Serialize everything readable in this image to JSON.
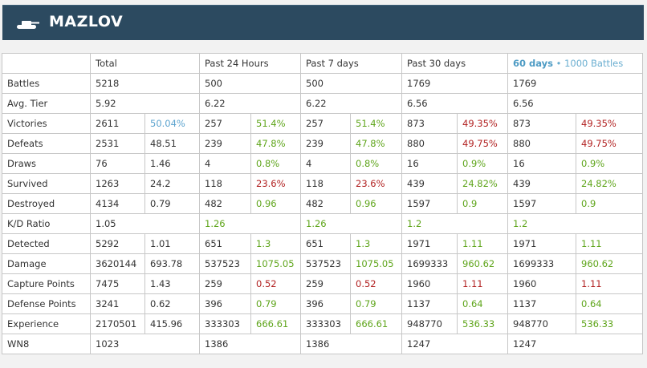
{
  "player": {
    "name": "MAZLOV",
    "icon": "tank-icon"
  },
  "columns": {
    "total": "Total",
    "past24": "Past 24 Hours",
    "past7": "Past 7 days",
    "past30": "Past 30 days",
    "last_highlight": "60 days",
    "last_separator": "•",
    "last_suffix": "1000 Battles"
  },
  "colors": {
    "header_bg": "#2c4a60",
    "good": "#5fa51b",
    "bad": "#b22222",
    "neutral_highlight": "#5da4cf"
  },
  "rows": {
    "battles": {
      "label": "Battles",
      "total": "5218",
      "d24": "500",
      "d7": "500",
      "d30": "1769",
      "d60": "1769"
    },
    "avg_tier": {
      "label": "Avg. Tier",
      "total": "5.92",
      "d24": "6.22",
      "d7": "6.22",
      "d30": "6.56",
      "d60": "6.56"
    },
    "victories": {
      "label": "Victories",
      "total": "2611",
      "total_r": "50.04%",
      "d24": "257",
      "d24_r": "51.4%",
      "d7": "257",
      "d7_r": "51.4%",
      "d30": "873",
      "d30_r": "49.35%",
      "d60": "873",
      "d60_r": "49.35%"
    },
    "defeats": {
      "label": "Defeats",
      "total": "2531",
      "total_r": "48.51",
      "d24": "239",
      "d24_r": "47.8%",
      "d7": "239",
      "d7_r": "47.8%",
      "d30": "880",
      "d30_r": "49.75%",
      "d60": "880",
      "d60_r": "49.75%"
    },
    "draws": {
      "label": "Draws",
      "total": "76",
      "total_r": "1.46",
      "d24": "4",
      "d24_r": "0.8%",
      "d7": "4",
      "d7_r": "0.8%",
      "d30": "16",
      "d30_r": "0.9%",
      "d60": "16",
      "d60_r": "0.9%"
    },
    "survived": {
      "label": "Survived",
      "total": "1263",
      "total_r": "24.2",
      "d24": "118",
      "d24_r": "23.6%",
      "d7": "118",
      "d7_r": "23.6%",
      "d30": "439",
      "d30_r": "24.82%",
      "d60": "439",
      "d60_r": "24.82%"
    },
    "destroyed": {
      "label": "Destroyed",
      "total": "4134",
      "total_r": "0.79",
      "d24": "482",
      "d24_r": "0.96",
      "d7": "482",
      "d7_r": "0.96",
      "d30": "1597",
      "d30_r": "0.9",
      "d60": "1597",
      "d60_r": "0.9"
    },
    "kd_ratio": {
      "label": "K/D Ratio",
      "total": "1.05",
      "d24": "1.26",
      "d7": "1.26",
      "d30": "1.2",
      "d60": "1.2"
    },
    "detected": {
      "label": "Detected",
      "total": "5292",
      "total_r": "1.01",
      "d24": "651",
      "d24_r": "1.3",
      "d7": "651",
      "d7_r": "1.3",
      "d30": "1971",
      "d30_r": "1.11",
      "d60": "1971",
      "d60_r": "1.11"
    },
    "damage": {
      "label": "Damage",
      "total": "3620144",
      "total_r": "693.78",
      "d24": "537523",
      "d24_r": "1075.05",
      "d7": "537523",
      "d7_r": "1075.05",
      "d30": "1699333",
      "d30_r": "960.62",
      "d60": "1699333",
      "d60_r": "960.62"
    },
    "capture": {
      "label": "Capture Points",
      "total": "7475",
      "total_r": "1.43",
      "d24": "259",
      "d24_r": "0.52",
      "d7": "259",
      "d7_r": "0.52",
      "d30": "1960",
      "d30_r": "1.11",
      "d60": "1960",
      "d60_r": "1.11"
    },
    "defense": {
      "label": "Defense Points",
      "total": "3241",
      "total_r": "0.62",
      "d24": "396",
      "d24_r": "0.79",
      "d7": "396",
      "d7_r": "0.79",
      "d30": "1137",
      "d30_r": "0.64",
      "d60": "1137",
      "d60_r": "0.64"
    },
    "experience": {
      "label": "Experience",
      "total": "2170501",
      "total_r": "415.96",
      "d24": "333303",
      "d24_r": "666.61",
      "d7": "333303",
      "d7_r": "666.61",
      "d30": "948770",
      "d30_r": "536.33",
      "d60": "948770",
      "d60_r": "536.33"
    },
    "wn8": {
      "label": "WN8",
      "total": "1023",
      "d24": "1386",
      "d7": "1386",
      "d30": "1247",
      "d60": "1247"
    }
  }
}
